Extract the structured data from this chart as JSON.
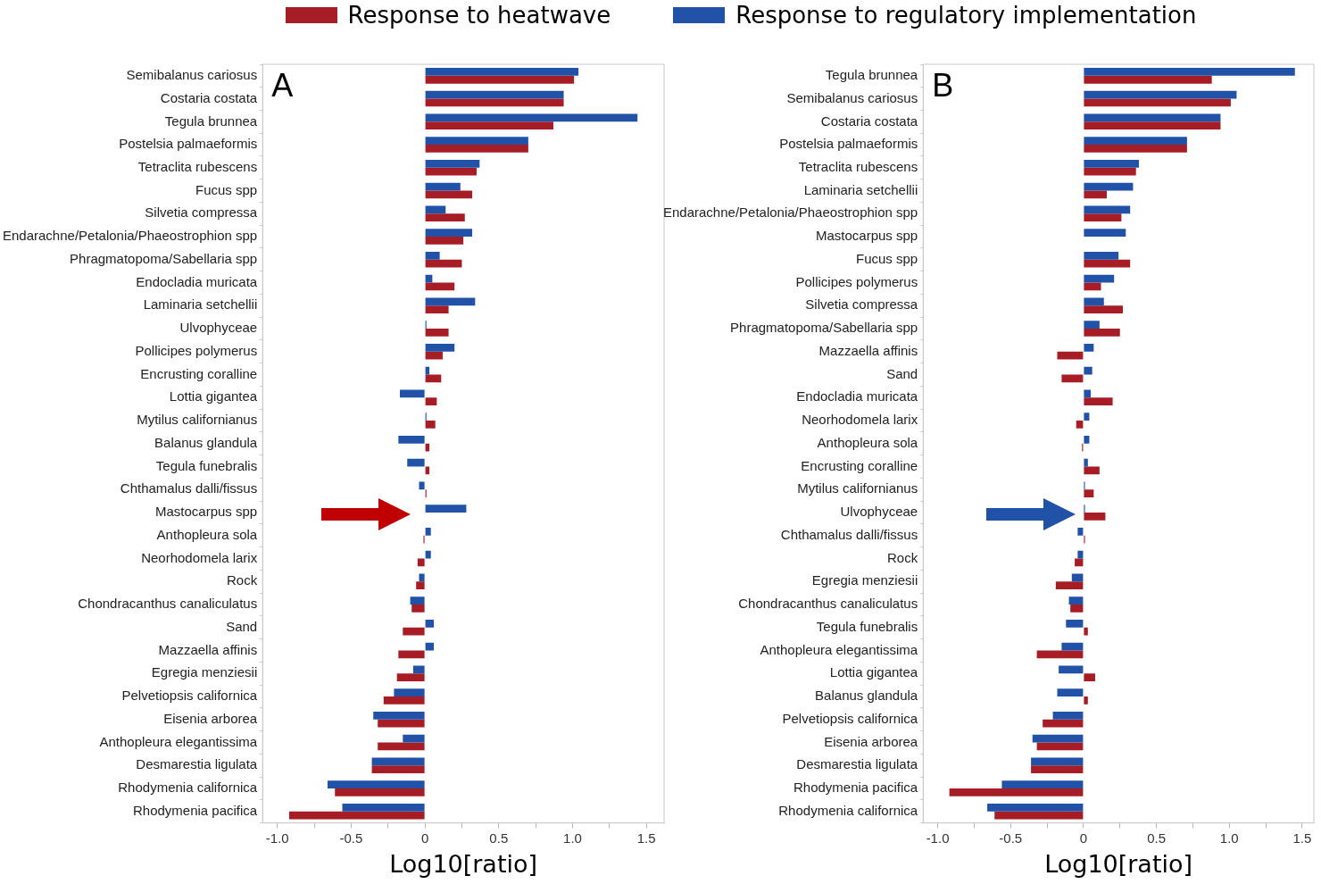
{
  "chart_data": [
    {
      "type": "bar",
      "orientation": "horizontal",
      "annotations": [
        "A"
      ],
      "xlabel": "Log10[ratio]",
      "legend": "top",
      "grid": false,
      "categories": [
        "Semibalanus cariosus",
        "Costaria costata",
        "Tegula brunnea",
        "Postelsia palmaeformis",
        "Tetraclita rubescens",
        "Fucus spp",
        "Silvetia compressa",
        "Endarachne/Petalonia/Phaeostrophion spp",
        "Phragmatopoma/Sabellaria spp",
        "Endocladia muricata",
        "Laminaria setchellii",
        "Ulvophyceae",
        "Pollicipes polymerus",
        "Encrusting coralline",
        "Lottia gigantea",
        "Mytilus californianus",
        "Balanus glandula",
        "Tegula funebralis",
        "Chthamalus dalli/fissus",
        "Mastocarpus spp",
        "Anthopleura sola",
        "Neorhodomela larix",
        "Rock",
        "Chondracanthus canaliculatus",
        "Sand",
        "Mazzaella affinis",
        "Egregia menziesii",
        "Pelvetiopsis californica",
        "Eisenia arborea",
        "Anthopleura elegantissima",
        "Desmarestia ligulata",
        "Rhodymenia californica",
        "Rhodymenia pacifica"
      ],
      "series": [
        {
          "name": "Response to regulatory implementation",
          "color": "#2152a8",
          "values": [
            1.04,
            0.94,
            1.44,
            0.7,
            0.37,
            0.24,
            0.14,
            0.32,
            0.1,
            0.05,
            0.34,
            0.01,
            0.2,
            0.03,
            -0.17,
            0.01,
            -0.18,
            -0.12,
            -0.04,
            0.28,
            0.04,
            0.04,
            -0.04,
            -0.1,
            0.06,
            0.06,
            -0.08,
            -0.21,
            -0.35,
            -0.15,
            -0.36,
            -0.66,
            -0.56
          ]
        },
        {
          "name": "Response to heatwave",
          "color": "#a61d26",
          "values": [
            1.01,
            0.94,
            0.87,
            0.7,
            0.35,
            0.32,
            0.27,
            0.26,
            0.25,
            0.2,
            0.16,
            0.16,
            0.12,
            0.11,
            0.08,
            0.07,
            0.03,
            0.03,
            0.01,
            0,
            -0.01,
            -0.05,
            -0.06,
            -0.09,
            -0.15,
            -0.18,
            -0.19,
            -0.28,
            -0.32,
            -0.32,
            -0.36,
            -0.61,
            -0.92
          ]
        }
      ],
      "xlim": [
        -1.1,
        1.62
      ],
      "xticks": [
        {
          "value": -1,
          "label": "-1.0"
        },
        {
          "value": -0.75,
          "label": null
        },
        -0.5,
        {
          "value": -0.25,
          "label": null
        },
        0,
        {
          "value": 0.25,
          "label": null
        },
        0.5,
        {
          "value": 0.75,
          "label": null
        },
        {
          "value": 1,
          "label": "1.0"
        },
        {
          "value": 1.25,
          "label": null
        },
        1.5
      ]
    },
    {
      "type": "bar",
      "orientation": "horizontal",
      "annotations": [
        "B"
      ],
      "xlabel": "Log10[ratio]",
      "grid": false,
      "categories": [
        "Tegula brunnea",
        "Semibalanus cariosus",
        "Costaria costata",
        "Postelsia palmaeformis",
        "Tetraclita rubescens",
        "Laminaria setchellii",
        "Endarachne/Petalonia/Phaeostrophion spp",
        "Mastocarpus spp",
        "Fucus spp",
        "Pollicipes polymerus",
        "Silvetia compressa",
        "Phragmatopoma/Sabellaria spp",
        "Mazzaella affinis",
        "Sand",
        "Endocladia muricata",
        "Neorhodomela larix",
        "Anthopleura sola",
        "Encrusting coralline",
        "Mytilus californianus",
        "Ulvophyceae",
        "Chthamalus dalli/fissus",
        "Rock",
        "Egregia menziesii",
        "Chondracanthus canaliculatus",
        "Tegula funebralis",
        "Anthopleura elegantissima",
        "Lottia gigantea",
        "Balanus glandula",
        "Pelvetiopsis californica",
        "Eisenia arborea",
        "Desmarestia ligulata",
        "Rhodymenia pacifica",
        "Rhodymenia californica"
      ],
      "series": [
        {
          "color": "#2152a8",
          "values": [
            1.45,
            1.05,
            0.94,
            0.71,
            0.38,
            0.34,
            0.32,
            0.29,
            0.24,
            0.21,
            0.14,
            0.11,
            0.07,
            0.06,
            0.05,
            0.04,
            0.04,
            0.03,
            0.01,
            0.01,
            -0.04,
            -0.04,
            -0.08,
            -0.1,
            -0.12,
            -0.15,
            -0.17,
            -0.18,
            -0.21,
            -0.35,
            -0.36,
            -0.56,
            -0.66
          ]
        },
        {
          "color": "#a61d26",
          "values": [
            0.88,
            1.01,
            0.94,
            0.71,
            0.36,
            0.16,
            0.26,
            0,
            0.32,
            0.12,
            0.27,
            0.25,
            -0.18,
            -0.15,
            0.2,
            -0.05,
            -0.01,
            0.11,
            0.07,
            0.15,
            0.01,
            -0.06,
            -0.19,
            -0.09,
            0.03,
            -0.32,
            0.08,
            0.03,
            -0.28,
            -0.32,
            -0.36,
            -0.92,
            -0.61
          ]
        }
      ],
      "xlim": [
        -1.1,
        1.58
      ],
      "xticks": [
        {
          "value": -1,
          "label": "-1.0"
        },
        {
          "value": -0.75,
          "label": null
        },
        -0.5,
        {
          "value": -0.25,
          "label": null
        },
        0,
        {
          "value": 0.25,
          "label": null
        },
        0.5,
        {
          "value": 0.75,
          "label": null
        },
        {
          "value": 1,
          "label": "1.0"
        },
        {
          "value": 1.25,
          "label": null
        },
        1.5
      ]
    }
  ]
}
